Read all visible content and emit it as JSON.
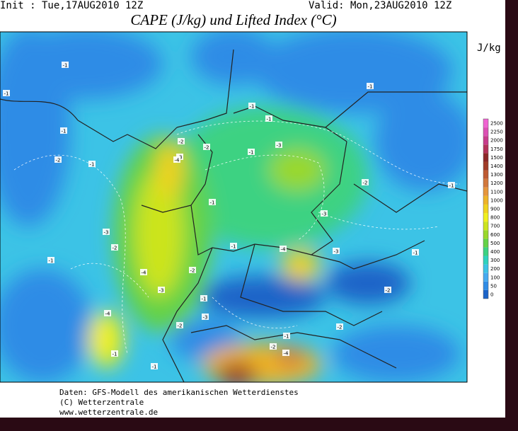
{
  "header": {
    "init": "Init : Tue,17AUG2010 12Z",
    "valid": "Valid: Mon,23AUG2010 12Z",
    "title": "CAPE (J/kg) und Lifted Index (°C)"
  },
  "legend": {
    "unit": "J/kg",
    "levels": [
      0,
      50,
      100,
      200,
      300,
      400,
      500,
      600,
      700,
      800,
      900,
      1000,
      1100,
      1200,
      1300,
      1400,
      1500,
      1750,
      2000,
      2250,
      2500
    ],
    "colors": [
      "#1c64c8",
      "#2f8ce6",
      "#46aaf0",
      "#3cc3e6",
      "#2ed2be",
      "#3cd282",
      "#64d246",
      "#9ad82a",
      "#cce41e",
      "#f0f01e",
      "#f0d21e",
      "#eeb428",
      "#e6963c",
      "#d2783c",
      "#be5a32",
      "#a03c28",
      "#8c2828",
      "#b4325a",
      "#c83c8c",
      "#dc50b4",
      "#f064d2"
    ]
  },
  "contour_labels": [
    "-1",
    "-1",
    "-1",
    "-1",
    "-2",
    "-1",
    "-1",
    "-3",
    "-2",
    "-1",
    "-2",
    "-3",
    "-1",
    "-4",
    "-3",
    "-2",
    "-1",
    "-3",
    "-2",
    "-4",
    "-1",
    "-2",
    "-3",
    "-4",
    "-1",
    "-2",
    "-3",
    "-1",
    "-2",
    "-4",
    "-1",
    "-2",
    "-1",
    "-1",
    "-2",
    "-4",
    "-3",
    "-1",
    "-2",
    "-1"
  ],
  "footer": [
    "Daten: GFS-Modell des amerikanischen Wetterdienstes",
    "(C) Wetterzentrale",
    "www.wetterzentrale.de"
  ]
}
